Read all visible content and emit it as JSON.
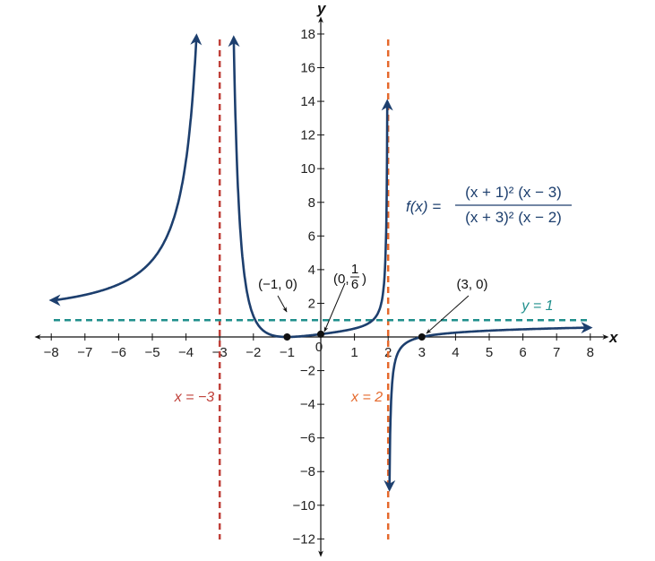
{
  "chart_data": {
    "type": "line",
    "function_label": {
      "lhs": "f(x) =",
      "numerator": "(x + 1)² (x − 3)",
      "denominator": "(x + 3)² (x − 2)"
    },
    "xlabel": "x",
    "ylabel": "y",
    "xlim": [
      -8,
      8
    ],
    "ylim": [
      -12,
      18
    ],
    "x_ticks": [
      -8,
      -7,
      -6,
      -5,
      -4,
      -3,
      -2,
      -1,
      1,
      2,
      3,
      4,
      5,
      6,
      7,
      8
    ],
    "x_tick_labels": [
      "−8",
      "−7",
      "−6",
      "−5",
      "−4",
      "−3",
      "−2",
      "−1",
      "1",
      "2",
      "3",
      "4",
      "5",
      "6",
      "7",
      "8"
    ],
    "y_ticks": [
      18,
      16,
      14,
      12,
      10,
      8,
      6,
      4,
      2,
      -2,
      -4,
      -6,
      -8,
      -10,
      -12
    ],
    "y_tick_labels": [
      "18",
      "16",
      "14",
      "12",
      "10",
      "8",
      "6",
      "4",
      "2",
      "−2",
      "−4",
      "−6",
      "−8",
      "−10",
      "−12"
    ],
    "origin_label": "0",
    "grid": false,
    "asymptotes": [
      {
        "type": "vertical",
        "value": -3,
        "label": "x = −3",
        "color": "#c0413a"
      },
      {
        "type": "vertical",
        "value": 2,
        "label": "x = 2",
        "color": "#e5692c"
      },
      {
        "type": "horizontal",
        "value": 1,
        "label": "y = 1",
        "color": "#1f8f8c"
      }
    ],
    "points": [
      {
        "x": -1,
        "y": 0,
        "label": "(−1, 0)"
      },
      {
        "x": 0,
        "y": 0.1667,
        "label_prefix": "(0,",
        "label_num": "1",
        "label_den": "6",
        "label_suffix": ")"
      },
      {
        "x": 3,
        "y": 0,
        "label": "(3, 0)"
      }
    ],
    "curve_color": "#1d3f6e"
  }
}
